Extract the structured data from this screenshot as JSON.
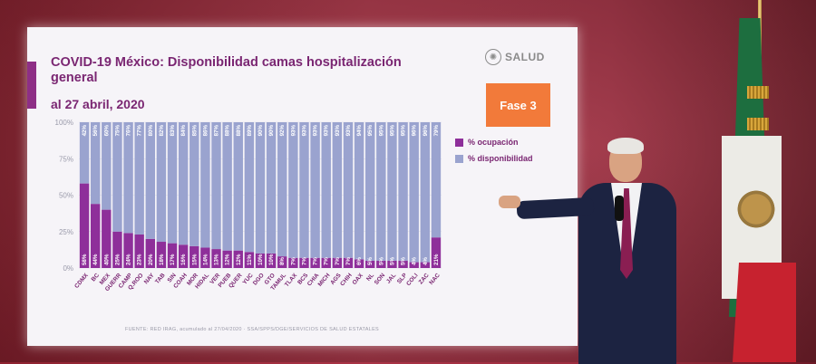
{
  "slide": {
    "title": "COVID-19 México: Disponibilidad camas hospitalización general",
    "subtitle": "al 27 abril, 2020",
    "logo_text": "SALUD",
    "phase_label": "Fase 3",
    "source": "FUENTE: RED IRAG, acumulado al 27/04/2020 · SSA/SPPS/DGE/SERVICIOS DE SALUD ESTATALES"
  },
  "colors": {
    "ocupacion": "#8e2f9a",
    "disponibilidad": "#9aa3cf",
    "phase": "#f27a3a"
  },
  "chart_data": {
    "type": "bar",
    "stacked": true,
    "title": "COVID-19 México: Disponibilidad camas hospitalización general",
    "ylim": [
      0,
      100
    ],
    "yticks": [
      "0%",
      "25%",
      "50%",
      "75%",
      "100%"
    ],
    "legend_position": "right",
    "categories": [
      "CDMX",
      "BC",
      "MEX",
      "GUERR",
      "CAMP",
      "Q.ROO",
      "NAY",
      "TAB",
      "SIN",
      "COAH",
      "MOR",
      "HIDAL",
      "VER",
      "PUEB",
      "QUER",
      "YUC",
      "DGO",
      "GTO",
      "TAMUL",
      "TLAX",
      "BCS",
      "CHIA",
      "MICH",
      "AGS",
      "CHIH",
      "OAX",
      "NL",
      "SON",
      "JAL",
      "SLP",
      "COLI",
      "ZAC",
      "NAC"
    ],
    "series": [
      {
        "name": "% ocupación",
        "values": [
          58,
          44,
          40,
          25,
          24,
          23,
          20,
          18,
          17,
          16,
          15,
          14,
          13,
          12,
          12,
          11,
          10,
          10,
          8,
          7,
          7,
          7,
          7,
          7,
          7,
          6,
          5,
          5,
          5,
          5,
          4,
          4,
          21
        ],
        "labels": [
          "58%",
          "44%",
          "40%",
          "25%",
          "24%",
          "23%",
          "20%",
          "18%",
          "17%",
          "16%",
          "15%",
          "14%",
          "13%",
          "12%",
          "12%",
          "11%",
          "10%",
          "10%",
          "8%",
          "7%",
          "7%",
          "7%",
          "7%",
          "7%",
          "7%",
          "6%",
          "5%",
          "5%",
          "5%",
          "5%",
          "4%",
          "4%",
          "21%"
        ]
      },
      {
        "name": "% disponibilidad",
        "values": [
          42,
          56,
          60,
          75,
          76,
          77,
          80,
          82,
          83,
          84,
          85,
          86,
          87,
          88,
          88,
          89,
          90,
          90,
          92,
          93,
          93,
          93,
          93,
          93,
          93,
          94,
          95,
          95,
          95,
          95,
          96,
          96,
          79
        ],
        "labels": [
          "42%",
          "56%",
          "60%",
          "75%",
          "76%",
          "77%",
          "80%",
          "82%",
          "83%",
          "84%",
          "85%",
          "86%",
          "87%",
          "88%",
          "88%",
          "89%",
          "90%",
          "90%",
          "92%",
          "93%",
          "93%",
          "93%",
          "93%",
          "93%",
          "93%",
          "94%",
          "95%",
          "95%",
          "95%",
          "95%",
          "96%",
          "96%",
          "79%"
        ]
      }
    ]
  }
}
